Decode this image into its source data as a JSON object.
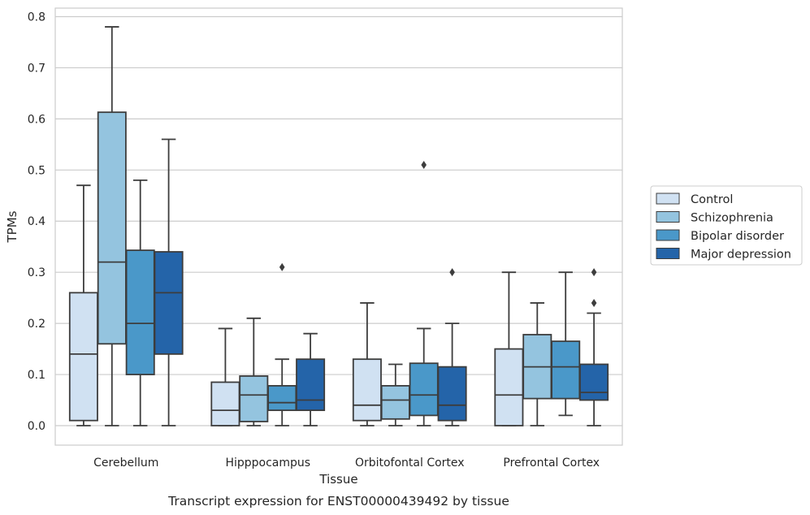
{
  "chart_data": {
    "type": "box",
    "title": "",
    "caption": "Transcript expression for ENST00000439492 by tissue",
    "xlabel": "Tissue",
    "ylabel": "TPMs",
    "ylim": [
      -0.04,
      0.82
    ],
    "yticks": [
      0.0,
      0.1,
      0.2,
      0.3,
      0.4,
      0.5,
      0.6,
      0.7,
      0.8
    ],
    "ytick_labels": [
      "0.0",
      "0.1",
      "0.2",
      "0.3",
      "0.4",
      "0.5",
      "0.6",
      "0.7",
      "0.8"
    ],
    "grid": "horizontal",
    "legend_position": "right",
    "categories": [
      "Cerebellum",
      "Hipppocampus",
      "Orbitofontal Cortex",
      "Prefrontal Cortex"
    ],
    "series": [
      {
        "name": "Control",
        "color": "#d0e1f2",
        "boxes": [
          {
            "whislo": 0.0,
            "q1": 0.01,
            "med": 0.14,
            "q3": 0.26,
            "whishi": 0.47,
            "fliers": []
          },
          {
            "whislo": 0.0,
            "q1": 0.0,
            "med": 0.03,
            "q3": 0.085,
            "whishi": 0.19,
            "fliers": []
          },
          {
            "whislo": 0.0,
            "q1": 0.01,
            "med": 0.04,
            "q3": 0.13,
            "whishi": 0.24,
            "fliers": []
          },
          {
            "whislo": 0.0,
            "q1": 0.0,
            "med": 0.06,
            "q3": 0.15,
            "whishi": 0.3,
            "fliers": []
          }
        ]
      },
      {
        "name": "Schizophrenia",
        "color": "#94c4df",
        "boxes": [
          {
            "whislo": 0.0,
            "q1": 0.16,
            "med": 0.32,
            "q3": 0.613,
            "whishi": 0.78,
            "fliers": []
          },
          {
            "whislo": 0.0,
            "q1": 0.008,
            "med": 0.06,
            "q3": 0.097,
            "whishi": 0.21,
            "fliers": []
          },
          {
            "whislo": 0.0,
            "q1": 0.013,
            "med": 0.05,
            "q3": 0.078,
            "whishi": 0.12,
            "fliers": []
          },
          {
            "whislo": 0.0,
            "q1": 0.053,
            "med": 0.115,
            "q3": 0.178,
            "whishi": 0.24,
            "fliers": []
          }
        ]
      },
      {
        "name": "Bipolar disorder",
        "color": "#4a98c9",
        "boxes": [
          {
            "whislo": 0.0,
            "q1": 0.1,
            "med": 0.2,
            "q3": 0.343,
            "whishi": 0.48,
            "fliers": []
          },
          {
            "whislo": 0.0,
            "q1": 0.03,
            "med": 0.045,
            "q3": 0.078,
            "whishi": 0.13,
            "fliers": [
              0.31
            ]
          },
          {
            "whislo": 0.0,
            "q1": 0.02,
            "med": 0.06,
            "q3": 0.122,
            "whishi": 0.19,
            "fliers": [
              0.51
            ]
          },
          {
            "whislo": 0.02,
            "q1": 0.053,
            "med": 0.115,
            "q3": 0.165,
            "whishi": 0.3,
            "fliers": []
          }
        ]
      },
      {
        "name": "Major depression",
        "color": "#2464a9",
        "boxes": [
          {
            "whislo": 0.0,
            "q1": 0.14,
            "med": 0.26,
            "q3": 0.34,
            "whishi": 0.56,
            "fliers": []
          },
          {
            "whislo": 0.0,
            "q1": 0.03,
            "med": 0.05,
            "q3": 0.13,
            "whishi": 0.18,
            "fliers": []
          },
          {
            "whislo": 0.0,
            "q1": 0.01,
            "med": 0.04,
            "q3": 0.115,
            "whishi": 0.2,
            "fliers": [
              0.3
            ]
          },
          {
            "whislo": 0.0,
            "q1": 0.05,
            "med": 0.065,
            "q3": 0.12,
            "whishi": 0.22,
            "fliers": [
              0.24,
              0.3
            ]
          }
        ]
      }
    ]
  }
}
